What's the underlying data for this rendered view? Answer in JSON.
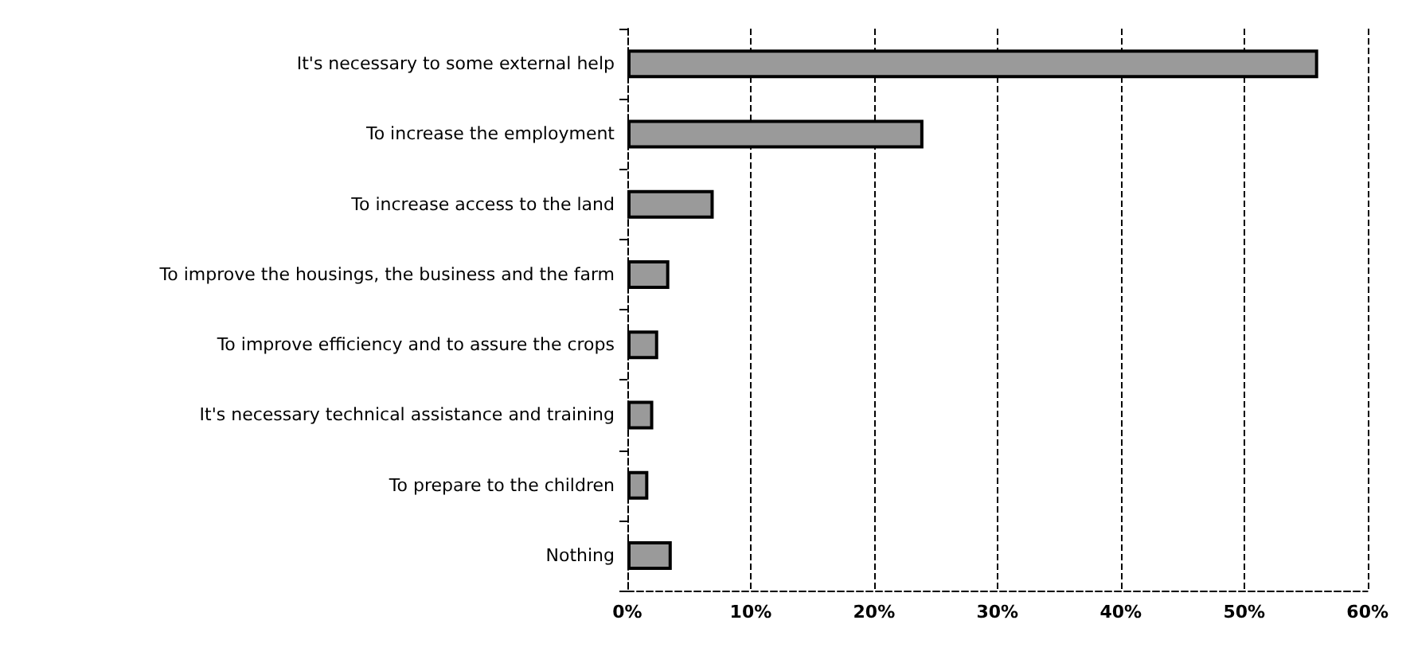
{
  "chart_data": {
    "type": "bar",
    "orientation": "horizontal",
    "categories": [
      "It's necessary to some external help",
      "To increase the employment",
      "To increase access to the land",
      "To improve the housings, the business and the farm",
      "To improve efficiency and to assure the crops",
      "It's necessary technical assistance and training",
      "To prepare to the children",
      "Nothing"
    ],
    "values": [
      56,
      24,
      7,
      3.4,
      2.5,
      2.1,
      1.7,
      3.6
    ],
    "color": "#9a9a9a",
    "xlim": [
      0,
      60
    ],
    "xticks": [
      {
        "value": 0,
        "label": "0%"
      },
      {
        "value": 10,
        "label": "10%"
      },
      {
        "value": 20,
        "label": "20%"
      },
      {
        "value": 30,
        "label": "30%"
      },
      {
        "value": 40,
        "label": "40%"
      },
      {
        "value": 50,
        "label": "50%"
      },
      {
        "value": 60,
        "label": "60%"
      }
    ],
    "grid": "x",
    "line_style": "dashed"
  }
}
